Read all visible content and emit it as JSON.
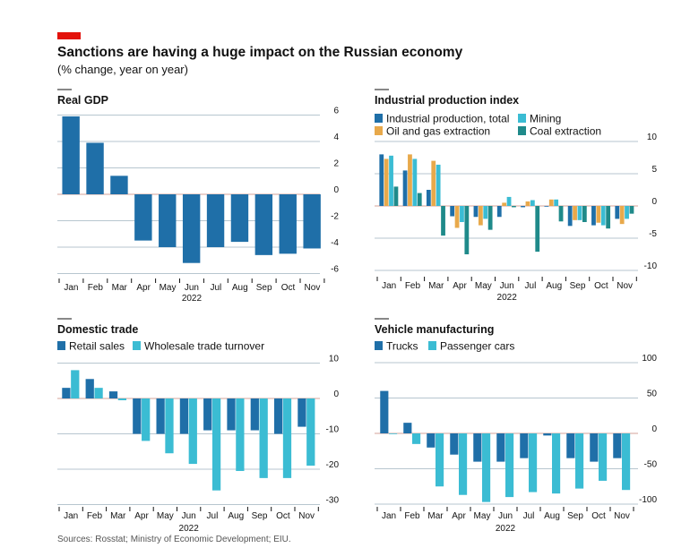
{
  "header": {
    "title": "Sanctions are having a huge impact on the Russian economy",
    "subtitle": "(% change, year on year)",
    "accent_color": "#e3120b"
  },
  "footer": {
    "source": "Sources: Rosstat; Ministry of Economic Development; EIU."
  },
  "chart_data": [
    {
      "id": "gdp",
      "type": "bar",
      "title": "Real GDP",
      "categories": [
        "Jan",
        "Feb",
        "Mar",
        "Apr",
        "May",
        "Jun",
        "Jul",
        "Aug",
        "Sep",
        "Oct",
        "Nov"
      ],
      "xlabel": "2022",
      "ylim": [
        -6,
        6
      ],
      "yticks": [
        6,
        4,
        2,
        0,
        -2,
        -4,
        -6
      ],
      "ytick_labels": [
        "6",
        "4",
        "2",
        "0",
        "-2",
        "-4",
        "-6"
      ],
      "series": [
        {
          "values": [
            5.9,
            3.9,
            1.4,
            -3.5,
            -4.0,
            -5.2,
            -4.0,
            -3.6,
            -4.6,
            -4.5,
            -4.1
          ],
          "color": "#1f6fa8"
        }
      ]
    },
    {
      "id": "industrial",
      "type": "bar",
      "title": "Industrial production index",
      "categories": [
        "Jan",
        "Feb",
        "Mar",
        "Apr",
        "May",
        "Jun",
        "Jul",
        "Aug",
        "Sep",
        "Oct",
        "Nov"
      ],
      "xlabel": "2022",
      "ylim": [
        -10,
        10
      ],
      "yticks": [
        10,
        5,
        0,
        -5,
        -10
      ],
      "ytick_labels": [
        "10",
        "5",
        "0",
        "-5",
        "-10"
      ],
      "series": [
        {
          "name": "Industrial production, total",
          "values": [
            8.0,
            5.5,
            2.5,
            -1.6,
            -1.7,
            -1.7,
            -0.2,
            -0.1,
            -3.1,
            -3.0,
            -2.0
          ],
          "color": "#1f6fa8"
        },
        {
          "name": "Oil and gas extraction",
          "values": [
            7.3,
            8.0,
            7.0,
            -3.4,
            -3.0,
            0.5,
            0.7,
            1.0,
            -2.2,
            -2.6,
            -2.8
          ],
          "color": "#e8a94b"
        },
        {
          "name": "Mining",
          "values": [
            7.8,
            7.3,
            6.4,
            -2.5,
            -2.0,
            1.4,
            0.9,
            1.0,
            -2.2,
            -3.0,
            -2.0
          ],
          "color": "#3bbcd3"
        },
        {
          "name": "Coal extraction",
          "values": [
            3.0,
            2.0,
            -4.6,
            -7.5,
            -3.7,
            -0.2,
            -7.1,
            -2.4,
            -2.5,
            -3.5,
            -1.2
          ],
          "color": "#1f8a8a"
        }
      ]
    },
    {
      "id": "trade",
      "type": "bar",
      "title": "Domestic trade",
      "categories": [
        "Jan",
        "Feb",
        "Mar",
        "Apr",
        "May",
        "Jun",
        "Jul",
        "Aug",
        "Sep",
        "Oct",
        "Nov"
      ],
      "xlabel": "2022",
      "ylim": [
        -30,
        10
      ],
      "yticks": [
        10,
        0,
        -10,
        -20,
        -30
      ],
      "ytick_labels": [
        "10",
        "0",
        "-10",
        "-20",
        "-30"
      ],
      "series": [
        {
          "name": "Retail sales",
          "values": [
            3.0,
            5.5,
            2.0,
            -10.0,
            -10.0,
            -10.0,
            -9.0,
            -9.0,
            -9.0,
            -10.0,
            -8.0
          ],
          "color": "#1f6fa8"
        },
        {
          "name": "Wholesale trade turnover",
          "values": [
            8.0,
            3.0,
            -0.5,
            -12.0,
            -15.5,
            -18.5,
            -26.0,
            -20.5,
            -22.5,
            -22.5,
            -19.0
          ],
          "color": "#3bbcd3"
        }
      ]
    },
    {
      "id": "vehicles",
      "type": "bar",
      "title": "Vehicle manufacturing",
      "categories": [
        "Jan",
        "Feb",
        "Mar",
        "Apr",
        "May",
        "Jun",
        "Jul",
        "Aug",
        "Sep",
        "Oct",
        "Nov"
      ],
      "xlabel": "2022",
      "ylim": [
        -100,
        100
      ],
      "yticks": [
        100,
        50,
        0,
        -50,
        -100
      ],
      "ytick_labels": [
        "100",
        "50",
        "0",
        "-50",
        "-100"
      ],
      "series": [
        {
          "name": "Trucks",
          "values": [
            60,
            15,
            -20,
            -30,
            -40,
            -40,
            -35,
            -3,
            -35,
            -40,
            -35
          ],
          "color": "#1f6fa8"
        },
        {
          "name": "Passenger cars",
          "values": [
            -1,
            -15,
            -75,
            -87,
            -97,
            -90,
            -83,
            -85,
            -78,
            -67,
            -80
          ],
          "color": "#3bbcd3"
        }
      ]
    }
  ]
}
